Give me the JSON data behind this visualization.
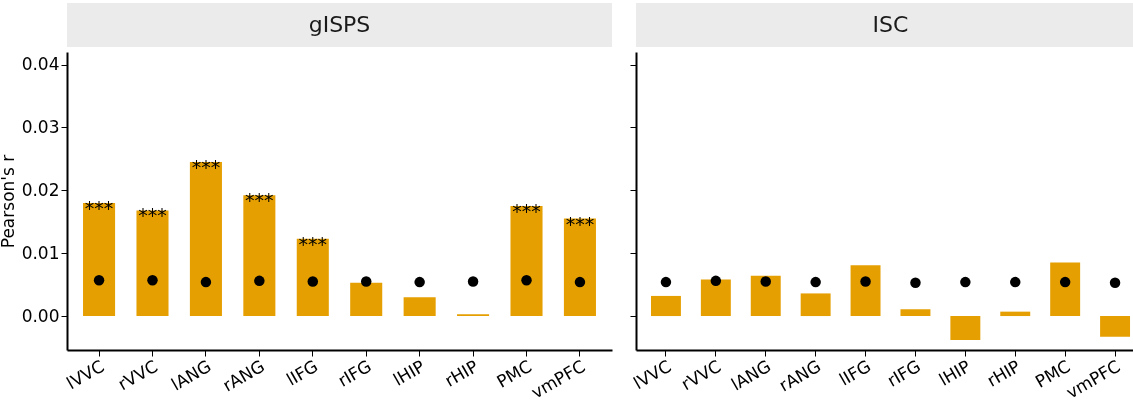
{
  "chart_data": [
    {
      "type": "bar",
      "title": "gISPS",
      "ylabel": "Pearson's r",
      "categories": [
        "lVVC",
        "rVVC",
        "lANG",
        "rANG",
        "lIFG",
        "rIFG",
        "lHIP",
        "rHIP",
        "PMC",
        "vmPFC"
      ],
      "series": [
        {
          "color": "#e69f00",
          "values": [
            0.018,
            0.0168,
            0.0245,
            0.0192,
            0.0123,
            0.0053,
            0.003,
            0.0003,
            0.0175,
            0.0155
          ]
        },
        {
          "type": "scatter",
          "color": "#000000",
          "x": [
            "lVVC",
            "rVVC",
            "lANG",
            "rANG",
            "lIFG",
            "rIFG",
            "lHIP",
            "rHIP",
            "PMC",
            "vmPFC"
          ],
          "values": [
            0.0057,
            0.0057,
            0.0054,
            0.0056,
            0.0055,
            0.0055,
            0.0054,
            0.0055,
            0.0057,
            0.0054
          ]
        }
      ],
      "marker": "circle",
      "ylim": [
        -0.0054,
        0.042
      ],
      "yticks": [
        {
          "value": 0,
          "label": "0.00"
        },
        {
          "value": 0.01,
          "label": "0.01"
        },
        {
          "value": 0.02,
          "label": "0.02"
        },
        {
          "value": 0.03,
          "label": "0.03"
        },
        {
          "value": 0.04,
          "label": "0.04"
        }
      ],
      "annotations": [
        {
          "text": "***",
          "x": "lVVC",
          "y": 0.018
        },
        {
          "text": "***",
          "x": "rVVC",
          "y": 0.0168
        },
        {
          "text": "***",
          "x": "lANG",
          "y": 0.0245
        },
        {
          "text": "***",
          "x": "rANG",
          "y": 0.0192
        },
        {
          "text": "***",
          "x": "lIFG",
          "y": 0.0123
        },
        {
          "text": "***",
          "x": "PMC",
          "y": 0.0175
        },
        {
          "text": "***",
          "x": "vmPFC",
          "y": 0.0155
        }
      ],
      "grid": false
    },
    {
      "type": "bar",
      "title": "ISC",
      "categories": [
        "lVVC",
        "rVVC",
        "lANG",
        "rANG",
        "lIFG",
        "rIFG",
        "lHIP",
        "rHIP",
        "PMC",
        "vmPFC"
      ],
      "series": [
        {
          "color": "#e69f00",
          "values": [
            0.0032,
            0.0058,
            0.0064,
            0.0036,
            0.0081,
            0.0011,
            -0.0038,
            0.0007,
            0.0085,
            -0.0033
          ]
        },
        {
          "type": "scatter",
          "color": "#000000",
          "x": [
            "lVVC",
            "rVVC",
            "lANG",
            "rANG",
            "lIFG",
            "rIFG",
            "lHIP",
            "rHIP",
            "PMC",
            "vmPFC"
          ],
          "values": [
            0.0054,
            0.0056,
            0.0055,
            0.0054,
            0.0055,
            0.0053,
            0.0054,
            0.0054,
            0.0054,
            0.0053
          ]
        }
      ],
      "marker": "circle",
      "ylim": [
        -0.0054,
        0.042
      ],
      "yticks": [
        {
          "value": 0,
          "label": null
        },
        {
          "value": 0.01,
          "label": null
        },
        {
          "value": 0.02,
          "label": null
        },
        {
          "value": 0.03,
          "label": null
        },
        {
          "value": 0.04,
          "label": null
        }
      ],
      "tick_labels": "x",
      "grid": false
    }
  ]
}
